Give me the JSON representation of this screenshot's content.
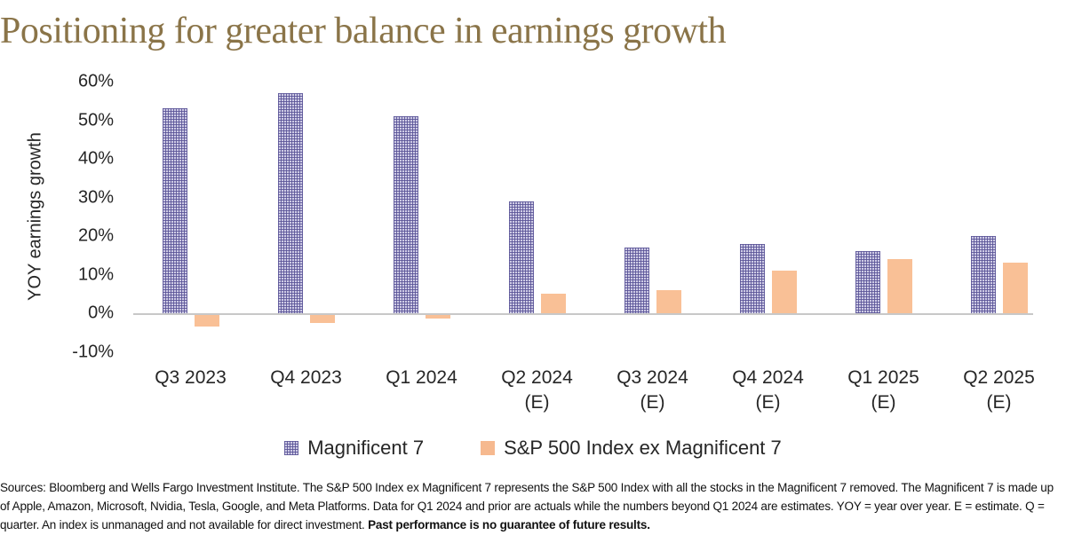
{
  "title": "Positioning for greater balance in earnings growth",
  "chart_data": {
    "type": "bar",
    "title": "Positioning for greater balance in earnings growth",
    "xlabel": "",
    "ylabel": "YOY earnings growth",
    "ylim": [
      -10,
      60
    ],
    "yticks": [
      60,
      50,
      40,
      30,
      20,
      10,
      0,
      -10
    ],
    "ytick_suffix": "%",
    "grid": false,
    "legend_position": "bottom",
    "categories": [
      "Q3 2023",
      "Q4 2023",
      "Q1 2024",
      "Q2 2024 (E)",
      "Q3 2024 (E)",
      "Q4 2024 (E)",
      "Q1 2025 (E)",
      "Q2 2025 (E)"
    ],
    "series": [
      {
        "name": "Magnificent 7",
        "color": "#8c87c1",
        "pattern": "dotted-grid",
        "values": [
          53,
          57,
          51,
          29,
          17,
          18,
          16,
          20
        ]
      },
      {
        "name": "S&P 500 Index ex Magnificent 7",
        "color": "#f9c096",
        "pattern": "solid",
        "values": [
          -3,
          -2,
          -1,
          5,
          6,
          11,
          14,
          13
        ]
      }
    ]
  },
  "footnote": {
    "text": "Sources: Bloomberg and Wells Fargo Investment Institute. The S&P 500 Index ex Magnificent 7 represents the S&P 500 Index with all the stocks in the Magnificent 7 removed. The Magnificent 7 is made up of Apple, Amazon, Microsoft, Nvidia, Tesla, Google, and Meta Platforms. Data for Q1 2024 and prior are actuals while the numbers beyond Q1 2024 are estimates. YOY = year over year. E = estimate. Q = quarter. An index is unmanaged and not available for direct investment. ",
    "bold_text": "Past performance is no guarantee of future results."
  },
  "colors": {
    "title_text": "#8a7448",
    "axis_text": "#262626",
    "axis_line": "#c8c8c8",
    "mag7_bar_light": "#cfcce6",
    "mag7_bar_dark": "#585296",
    "sp500_bar": "#f9c096",
    "footnote_text": "#111111",
    "background": "#ffffff"
  }
}
